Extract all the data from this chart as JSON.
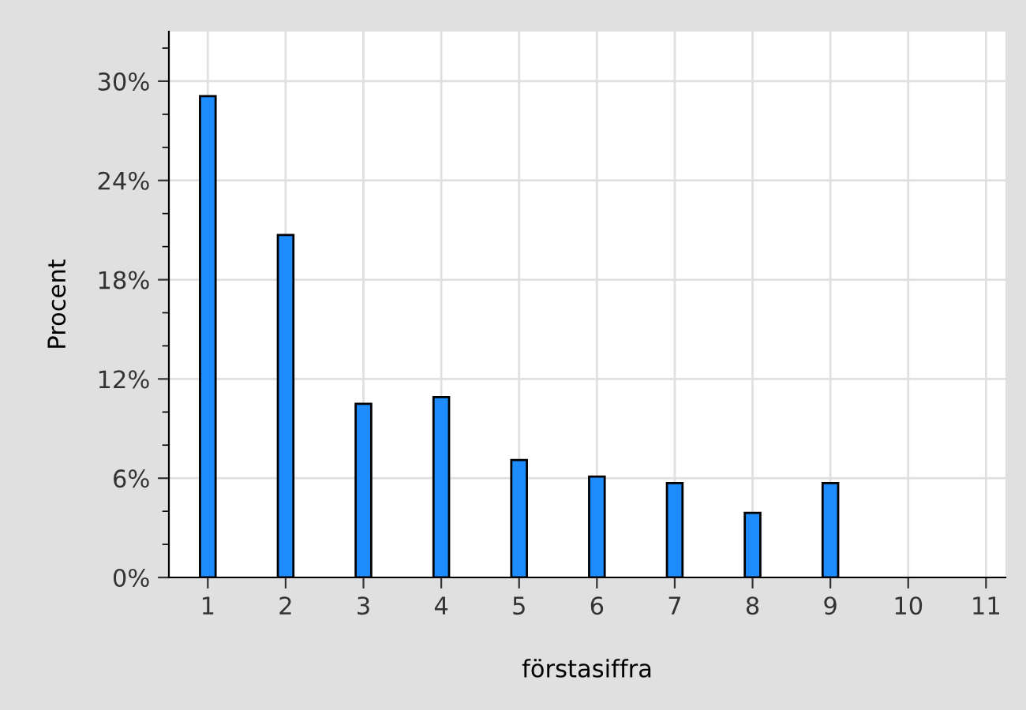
{
  "chart_data": {
    "type": "bar",
    "xlabel": "förstasiffra",
    "ylabel": "Procent",
    "x": [
      1,
      2,
      3,
      4,
      5,
      6,
      7,
      8,
      9
    ],
    "values": [
      29.1,
      20.7,
      10.5,
      10.9,
      7.1,
      6.1,
      5.7,
      3.9,
      5.7
    ],
    "color": "#1e8cff",
    "xlim": [
      0.5,
      11.25
    ],
    "xticks": [
      1,
      2,
      3,
      4,
      5,
      6,
      7,
      8,
      9,
      10,
      11
    ],
    "ylim": [
      0,
      33
    ],
    "yticks": [
      {
        "value": 0,
        "label": "0%"
      },
      {
        "value": 6,
        "label": "6%"
      },
      {
        "value": 12,
        "label": "12%"
      },
      {
        "value": 18,
        "label": "18%"
      },
      {
        "value": 24,
        "label": "24%"
      },
      {
        "value": 30,
        "label": "30%"
      }
    ],
    "grid": true
  }
}
